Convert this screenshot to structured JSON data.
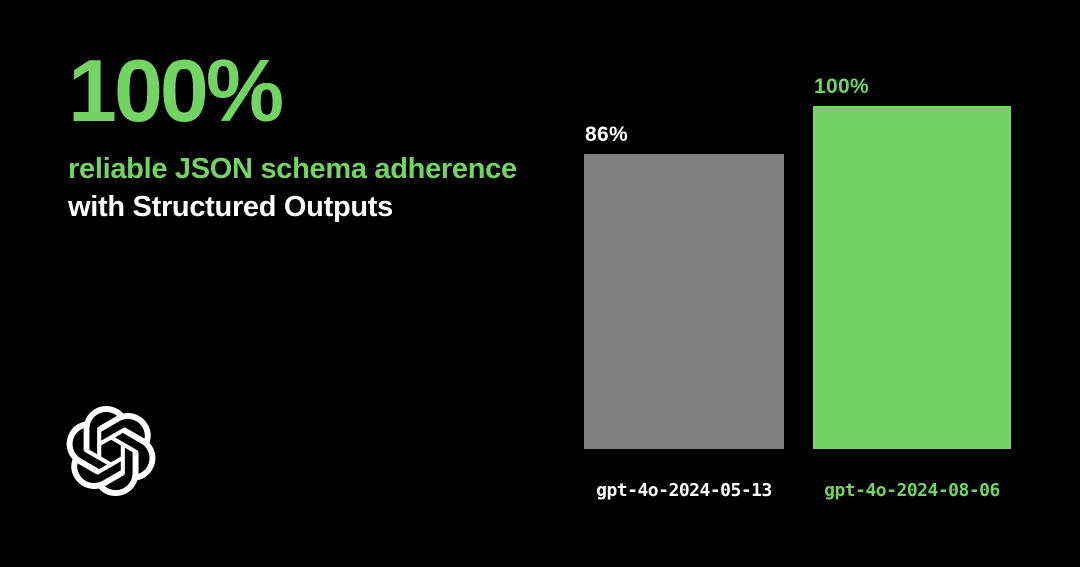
{
  "page": {
    "background": "#000000",
    "accent_green": "#74d463",
    "white": "#ffffff"
  },
  "headline": {
    "stat": "100%",
    "line1": "reliable JSON schema adherence",
    "line2": "with Structured Outputs"
  },
  "logo": {
    "name": "openai-logo",
    "color": "#ffffff"
  },
  "chart_data": {
    "type": "bar",
    "title": "100% reliable JSON schema adherence with Structured Outputs",
    "categories": [
      "gpt-4o-2024-05-13",
      "gpt-4o-2024-08-06"
    ],
    "values": [
      86,
      100
    ],
    "value_labels": [
      "86%",
      "100%"
    ],
    "bar_colors": [
      "#808080",
      "#74d463"
    ],
    "value_label_colors": [
      "#ffffff",
      "#74d463"
    ],
    "category_label_colors": [
      "#ffffff",
      "#74d463"
    ],
    "ylim": [
      0,
      100
    ],
    "grid": false,
    "legend": false,
    "axes_visible": false
  }
}
